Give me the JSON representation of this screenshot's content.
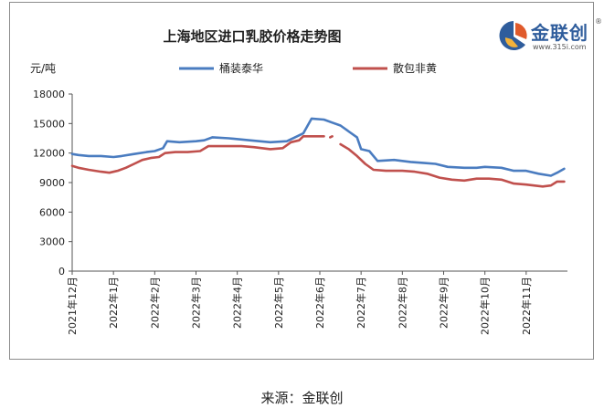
{
  "chart_data": {
    "type": "line",
    "title": "上海地区进口乳胶价格走势图",
    "ylabel": "元/吨",
    "xlabel": "",
    "ylim": [
      0,
      18000
    ],
    "yticks": [
      0,
      3000,
      6000,
      9000,
      12000,
      15000,
      18000
    ],
    "xlim": [
      0,
      12
    ],
    "x_ticks": [
      0,
      1,
      2,
      3,
      4,
      5,
      6,
      7,
      8,
      9,
      10,
      11
    ],
    "x_tick_labels": [
      "2021年12月",
      "2022年1月",
      "2022年2月",
      "2022年3月",
      "2022年4月",
      "2022年5月",
      "2022年6月",
      "2022年7月",
      "2022年8月",
      "2022年9月",
      "2022年10月",
      "2022年11月"
    ],
    "grid": false,
    "legend_position": "top",
    "series": [
      {
        "name": "桶装泰华",
        "color": "#4a7cc0",
        "points": [
          [
            0,
            11900
          ],
          [
            0.15,
            11800
          ],
          [
            0.4,
            11700
          ],
          [
            0.7,
            11700
          ],
          [
            1,
            11600
          ],
          [
            1.2,
            11700
          ],
          [
            1.5,
            11900
          ],
          [
            1.8,
            12100
          ],
          [
            2.0,
            12200
          ],
          [
            2.2,
            12500
          ],
          [
            2.3,
            13200
          ],
          [
            2.6,
            13100
          ],
          [
            3.0,
            13200
          ],
          [
            3.2,
            13300
          ],
          [
            3.4,
            13600
          ],
          [
            3.8,
            13500
          ],
          [
            4.3,
            13300
          ],
          [
            4.8,
            13100
          ],
          [
            5.2,
            13200
          ],
          [
            5.4,
            13600
          ],
          [
            5.6,
            14000
          ],
          [
            5.8,
            15500
          ],
          [
            6.1,
            15400
          ],
          [
            6.3,
            15100
          ],
          [
            6.5,
            14800
          ],
          [
            6.7,
            14200
          ],
          [
            6.9,
            13600
          ],
          [
            7.0,
            12400
          ],
          [
            7.2,
            12200
          ],
          [
            7.4,
            11200
          ],
          [
            7.8,
            11300
          ],
          [
            8.2,
            11100
          ],
          [
            8.5,
            11000
          ],
          [
            8.8,
            10900
          ],
          [
            9.1,
            10600
          ],
          [
            9.5,
            10500
          ],
          [
            9.8,
            10500
          ],
          [
            10.0,
            10600
          ],
          [
            10.4,
            10500
          ],
          [
            10.7,
            10200
          ],
          [
            11.0,
            10200
          ],
          [
            11.3,
            9900
          ],
          [
            11.6,
            9700
          ],
          [
            11.75,
            10000
          ],
          [
            11.92,
            10400
          ]
        ]
      },
      {
        "name": "散包非黄",
        "color": "#c0504d",
        "points": [
          [
            0,
            10700
          ],
          [
            0.15,
            10500
          ],
          [
            0.4,
            10300
          ],
          [
            0.7,
            10100
          ],
          [
            0.9,
            10000
          ],
          [
            1.1,
            10200
          ],
          [
            1.3,
            10500
          ],
          [
            1.5,
            10900
          ],
          [
            1.7,
            11300
          ],
          [
            1.9,
            11500
          ],
          [
            2.1,
            11600
          ],
          [
            2.25,
            12000
          ],
          [
            2.5,
            12100
          ],
          [
            2.8,
            12100
          ],
          [
            3.1,
            12200
          ],
          [
            3.3,
            12700
          ],
          [
            3.6,
            12700
          ],
          [
            4.1,
            12700
          ],
          [
            4.4,
            12600
          ],
          [
            4.8,
            12400
          ],
          [
            5.1,
            12500
          ],
          [
            5.3,
            13100
          ],
          [
            5.5,
            13300
          ],
          [
            5.6,
            13700
          ],
          [
            5.9,
            13700
          ],
          [
            6.1,
            13700
          ]
        ]
      },
      {
        "name": "散包非黄",
        "color": "#c0504d",
        "points": [
          [
            6.25,
            13600
          ],
          [
            6.3,
            13700
          ]
        ]
      },
      {
        "name": "散包非黄",
        "color": "#c0504d",
        "points": [
          [
            6.5,
            12900
          ],
          [
            6.7,
            12400
          ],
          [
            6.9,
            11700
          ],
          [
            7.1,
            10900
          ],
          [
            7.3,
            10300
          ],
          [
            7.6,
            10200
          ],
          [
            8.0,
            10200
          ],
          [
            8.3,
            10100
          ],
          [
            8.6,
            9900
          ],
          [
            8.9,
            9500
          ],
          [
            9.2,
            9300
          ],
          [
            9.5,
            9200
          ],
          [
            9.8,
            9400
          ],
          [
            10.1,
            9400
          ],
          [
            10.4,
            9300
          ],
          [
            10.7,
            8900
          ],
          [
            11.0,
            8800
          ],
          [
            11.4,
            8600
          ],
          [
            11.6,
            8700
          ],
          [
            11.75,
            9100
          ],
          [
            11.92,
            9100
          ]
        ]
      }
    ]
  },
  "legend": [
    {
      "name": "桶装泰华",
      "color": "#4a7cc0"
    },
    {
      "name": "散包非黄",
      "color": "#c0504d"
    }
  ],
  "logo": {
    "text": "金联创",
    "url": "www.315i.com",
    "reg_mark": "®"
  },
  "source_caption": "来源：金联创"
}
